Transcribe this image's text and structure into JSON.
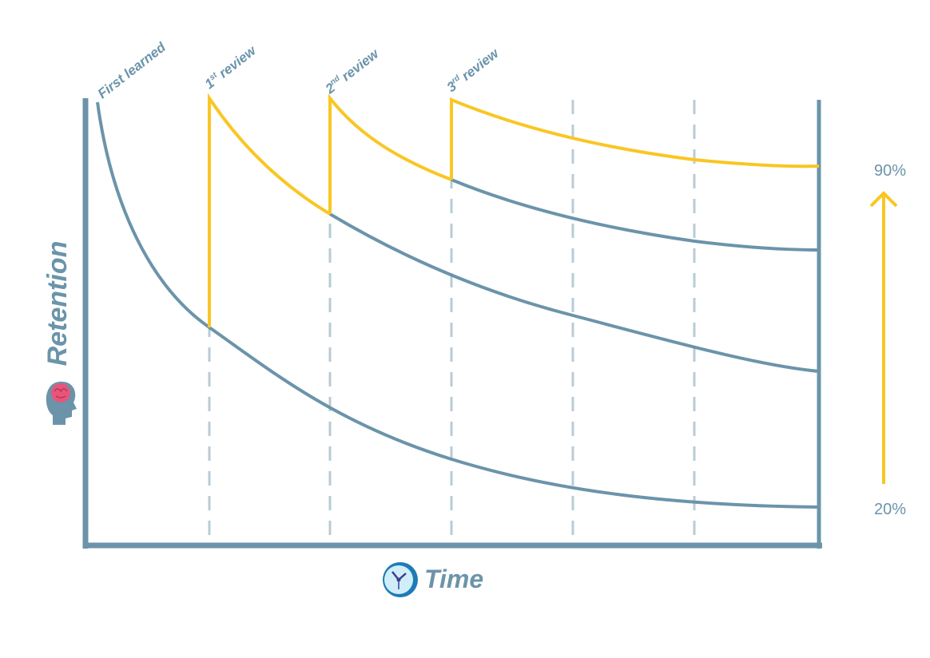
{
  "events": [
    {
      "label": "First learned"
    },
    {
      "ordinal": "1",
      "suffix": "st",
      "text": "review"
    },
    {
      "ordinal": "2",
      "suffix": "nd",
      "text": "review"
    },
    {
      "ordinal": "3",
      "suffix": "rd",
      "text": "review"
    }
  ],
  "y_axis": {
    "label": "Retention"
  },
  "x_axis": {
    "label": "Time"
  },
  "scale": {
    "top": "90%",
    "bottom": "20%"
  }
}
